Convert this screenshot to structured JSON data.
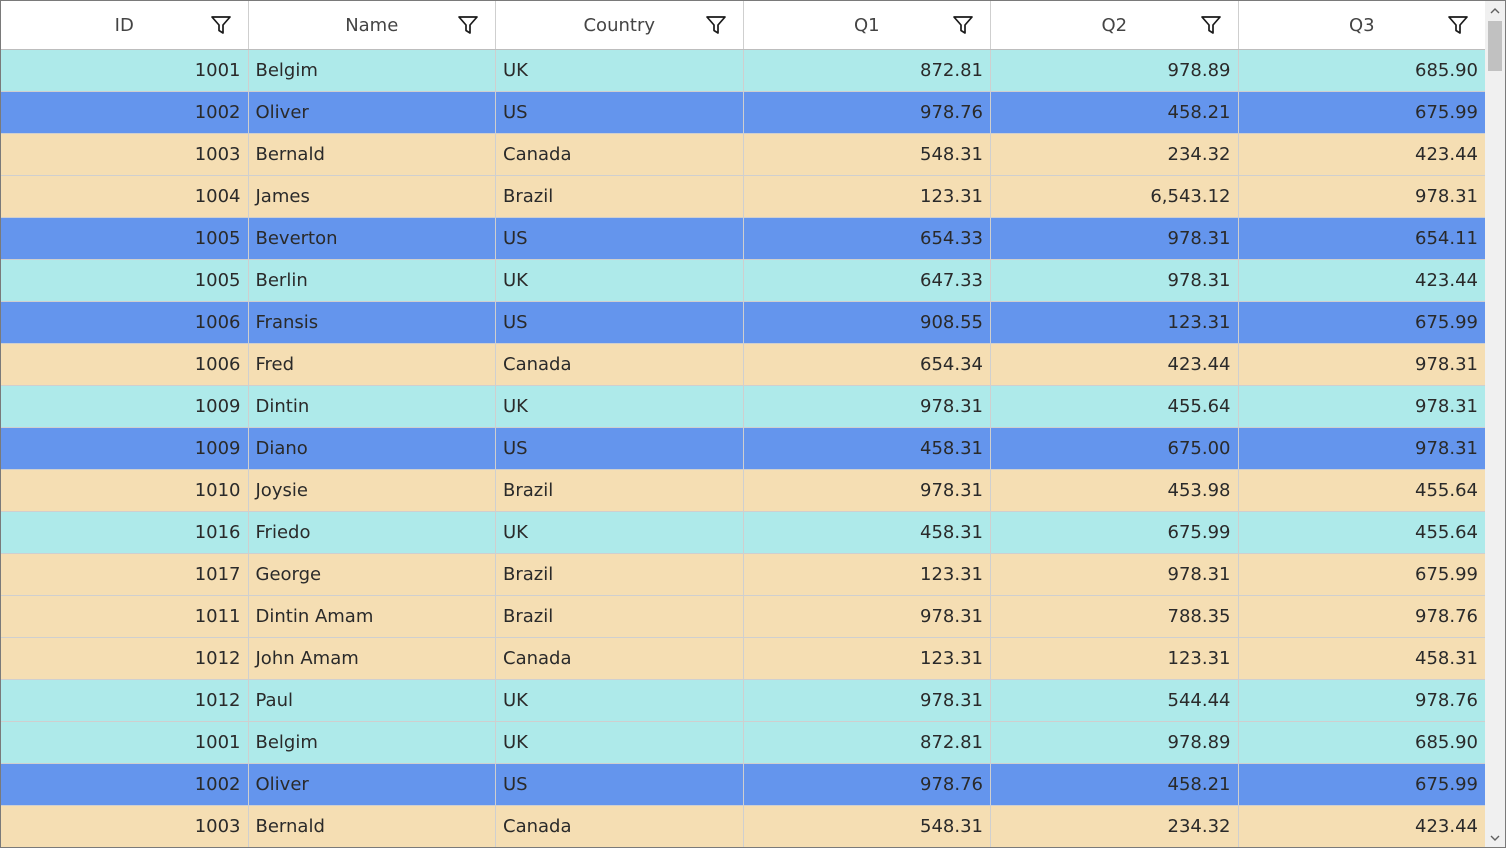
{
  "colors": {
    "cyan": "#aeeaea",
    "blue": "#6495ed",
    "wheat": "#f5deb3"
  },
  "columns": [
    {
      "label": "ID",
      "icon": "filter-icon"
    },
    {
      "label": "Name",
      "icon": "filter-icon"
    },
    {
      "label": "Country",
      "icon": "filter-icon"
    },
    {
      "label": "Q1",
      "icon": "filter-icon"
    },
    {
      "label": "Q2",
      "icon": "filter-icon"
    },
    {
      "label": "Q3",
      "icon": "filter-icon"
    }
  ],
  "rows": [
    {
      "id": "1001",
      "name": "Belgim",
      "country": "UK",
      "q1": "872.81",
      "q2": "978.89",
      "q3": "685.90",
      "color": "cyan"
    },
    {
      "id": "1002",
      "name": "Oliver",
      "country": "US",
      "q1": "978.76",
      "q2": "458.21",
      "q3": "675.99",
      "color": "blue"
    },
    {
      "id": "1003",
      "name": "Bernald",
      "country": "Canada",
      "q1": "548.31",
      "q2": "234.32",
      "q3": "423.44",
      "color": "wheat"
    },
    {
      "id": "1004",
      "name": "James",
      "country": "Brazil",
      "q1": "123.31",
      "q2": "6,543.12",
      "q3": "978.31",
      "color": "wheat"
    },
    {
      "id": "1005",
      "name": "Beverton",
      "country": "US",
      "q1": "654.33",
      "q2": "978.31",
      "q3": "654.11",
      "color": "blue"
    },
    {
      "id": "1005",
      "name": "Berlin",
      "country": "UK",
      "q1": "647.33",
      "q2": "978.31",
      "q3": "423.44",
      "color": "cyan"
    },
    {
      "id": "1006",
      "name": "Fransis",
      "country": "US",
      "q1": "908.55",
      "q2": "123.31",
      "q3": "675.99",
      "color": "blue"
    },
    {
      "id": "1006",
      "name": "Fred",
      "country": "Canada",
      "q1": "654.34",
      "q2": "423.44",
      "q3": "978.31",
      "color": "wheat"
    },
    {
      "id": "1009",
      "name": "Dintin",
      "country": "UK",
      "q1": "978.31",
      "q2": "455.64",
      "q3": "978.31",
      "color": "cyan"
    },
    {
      "id": "1009",
      "name": "Diano",
      "country": "US",
      "q1": "458.31",
      "q2": "675.00",
      "q3": "978.31",
      "color": "blue"
    },
    {
      "id": "1010",
      "name": "Joysie",
      "country": "Brazil",
      "q1": "978.31",
      "q2": "453.98",
      "q3": "455.64",
      "color": "wheat"
    },
    {
      "id": "1016",
      "name": "Friedo",
      "country": "UK",
      "q1": "458.31",
      "q2": "675.99",
      "q3": "455.64",
      "color": "cyan"
    },
    {
      "id": "1017",
      "name": "George",
      "country": "Brazil",
      "q1": "123.31",
      "q2": "978.31",
      "q3": "675.99",
      "color": "wheat"
    },
    {
      "id": "1011",
      "name": "Dintin Amam",
      "country": "Brazil",
      "q1": "978.31",
      "q2": "788.35",
      "q3": "978.76",
      "color": "wheat"
    },
    {
      "id": "1012",
      "name": "John Amam",
      "country": "Canada",
      "q1": "123.31",
      "q2": "123.31",
      "q3": "458.31",
      "color": "wheat"
    },
    {
      "id": "1012",
      "name": "Paul",
      "country": "UK",
      "q1": "978.31",
      "q2": "544.44",
      "q3": "978.76",
      "color": "cyan"
    },
    {
      "id": "1001",
      "name": "Belgim",
      "country": "UK",
      "q1": "872.81",
      "q2": "978.89",
      "q3": "685.90",
      "color": "cyan"
    },
    {
      "id": "1002",
      "name": "Oliver",
      "country": "US",
      "q1": "978.76",
      "q2": "458.21",
      "q3": "675.99",
      "color": "blue"
    },
    {
      "id": "1003",
      "name": "Bernald",
      "country": "Canada",
      "q1": "548.31",
      "q2": "234.32",
      "q3": "423.44",
      "color": "wheat"
    }
  ],
  "scrollbar": {
    "up_icon": "chevron-up-icon",
    "down_icon": "chevron-down-icon"
  }
}
